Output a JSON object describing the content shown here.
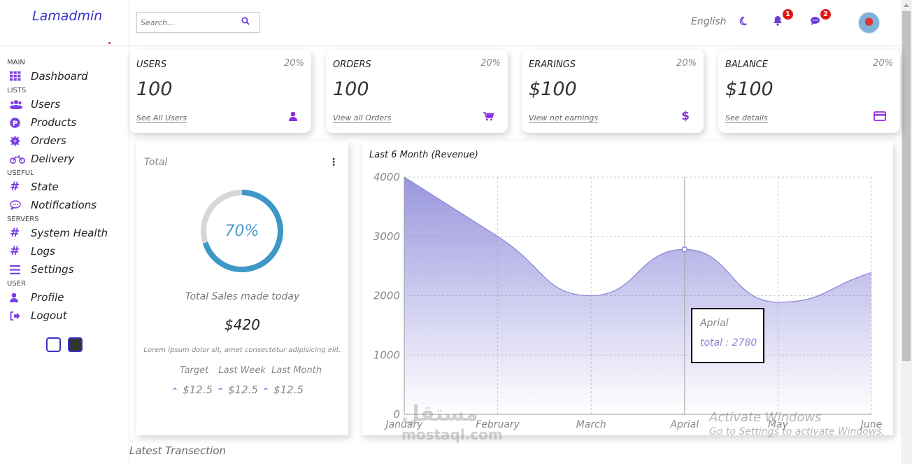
{
  "app": {
    "logo": "Lamadmin"
  },
  "sidebar": {
    "sections": [
      {
        "title": "MAIN",
        "items": [
          {
            "label": "Dashboard",
            "icon": "grid-icon"
          }
        ]
      },
      {
        "title": "LISTS",
        "items": [
          {
            "label": "Users",
            "icon": "users-icon"
          },
          {
            "label": "Products",
            "icon": "products-icon"
          },
          {
            "label": "Orders",
            "icon": "orders-icon"
          },
          {
            "label": "Delivery",
            "icon": "motorcycle-icon"
          }
        ]
      },
      {
        "title": "USEFUL",
        "items": [
          {
            "label": "State",
            "icon": "hash-icon"
          },
          {
            "label": "Notifications",
            "icon": "comment-icon"
          }
        ]
      },
      {
        "title": "SERVERS",
        "items": [
          {
            "label": "System Health",
            "icon": "hash-icon"
          },
          {
            "label": "Logs",
            "icon": "hash-icon"
          },
          {
            "label": "Settings",
            "icon": "bars-icon"
          }
        ]
      },
      {
        "title": "USER",
        "items": [
          {
            "label": "Profile",
            "icon": "user-icon"
          },
          {
            "label": "Logout",
            "icon": "logout-icon"
          }
        ]
      }
    ]
  },
  "topbar": {
    "search_placeholder": "Search...",
    "language": "English",
    "notifications_count": "1",
    "messages_count": "2"
  },
  "widgets": [
    {
      "title": "USERS",
      "percent": "20%",
      "value": "100",
      "link": "See All Users",
      "icon": "user-icon"
    },
    {
      "title": "ORDERS",
      "percent": "20%",
      "value": "100",
      "link": "View all Orders",
      "icon": "cart-icon"
    },
    {
      "title": "ERARINGS",
      "percent": "20%",
      "value": "$100",
      "link": "View net earnings",
      "icon": "dollar-icon"
    },
    {
      "title": "BALANCE",
      "percent": "20%",
      "value": "$100",
      "link": "See details",
      "icon": "card-icon"
    }
  ],
  "featured": {
    "title": "Total",
    "progress": 70,
    "progress_label": "70%",
    "subtitle": "Total Sales made today",
    "amount": "$420",
    "description": "Lorem ipsum dolor sit, amet consectetur adipisicing elit.",
    "labels": [
      "Target",
      "Last Week",
      "Last Month"
    ],
    "values": [
      "$12.5",
      "$12.5",
      "$12.5"
    ]
  },
  "chart_data": {
    "type": "area",
    "title": "Last 6 Month (Revenue)",
    "categories": [
      "January",
      "February",
      "March",
      "Aprial",
      "May",
      "June"
    ],
    "values": [
      4000,
      3000,
      2000,
      2780,
      1890,
      2390
    ],
    "ylim": [
      0,
      4000
    ],
    "yticks": [
      0,
      1000,
      2000,
      3000,
      4000
    ],
    "grid": true,
    "tooltip": {
      "label": "Aprial",
      "text": "total : 2780"
    },
    "colors": {
      "line": "#8884d8",
      "fill": "#8884d8"
    }
  },
  "footer": {
    "section_title": "Latest Transection"
  },
  "overlay": {
    "activate_title": "Activate Windows",
    "activate_sub": "Go to Settings to activate Windows.",
    "watermark_ar": "مستقل",
    "watermark_en": "mostaql.com"
  }
}
